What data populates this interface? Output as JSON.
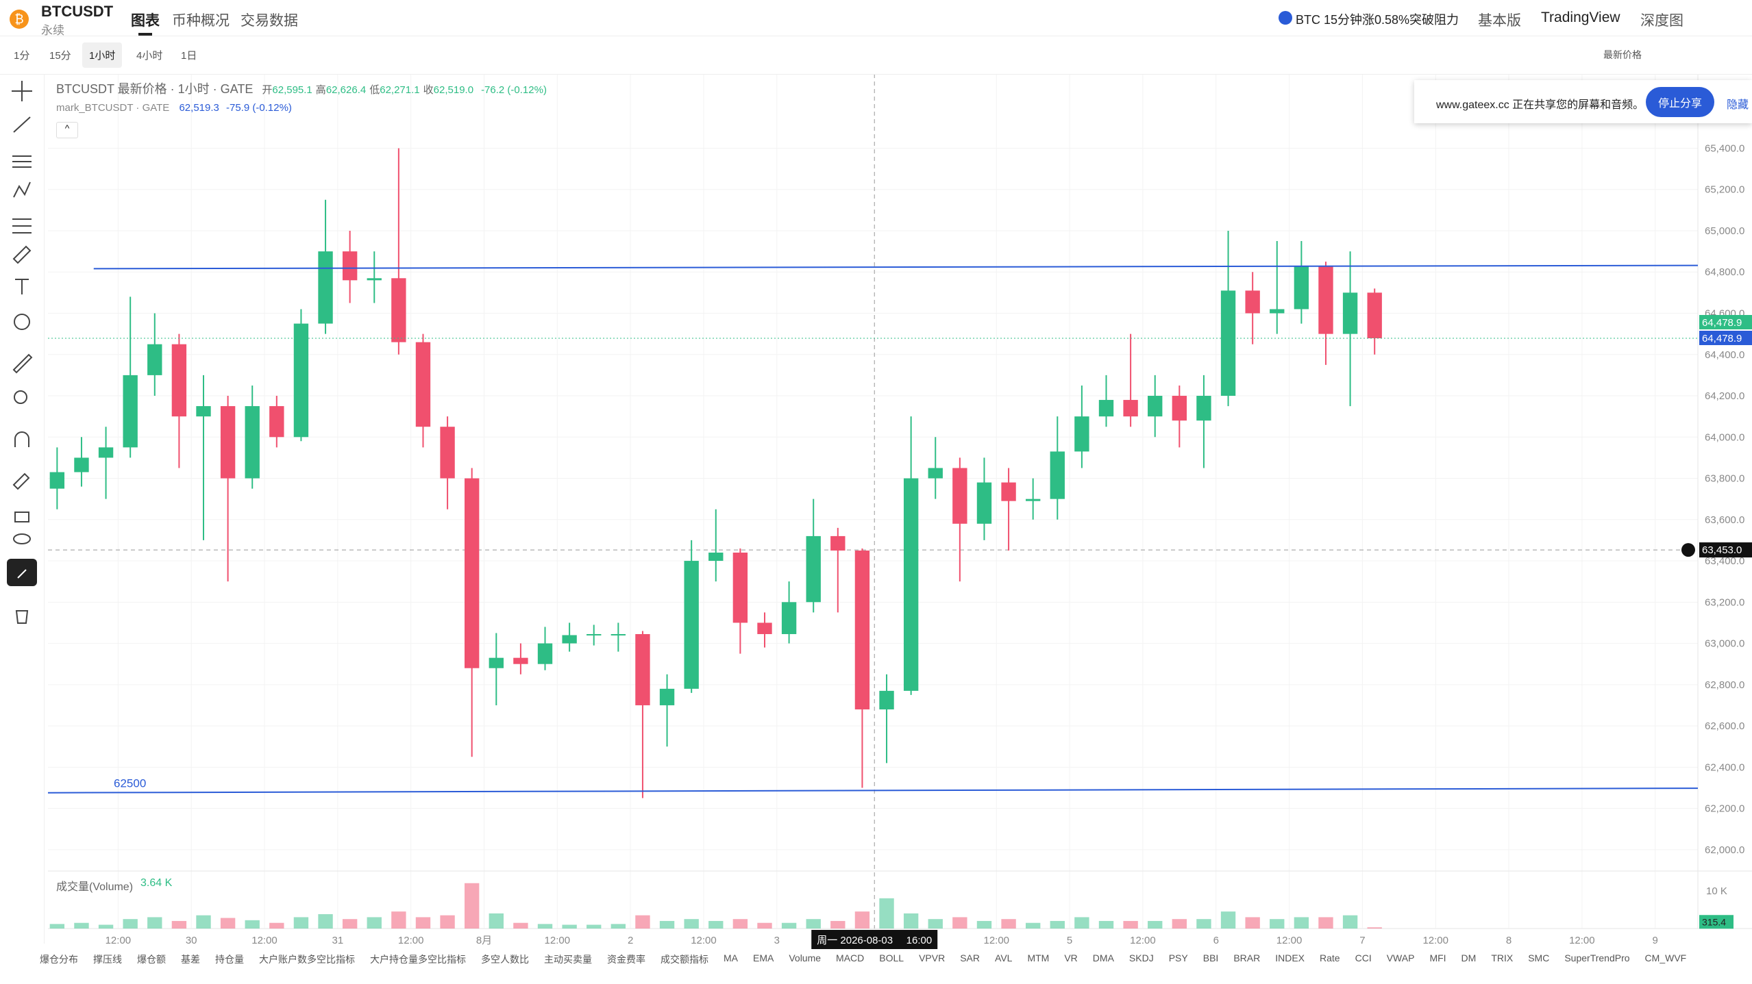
{
  "header": {
    "symbol": "BTCUSDT",
    "contract": "永续",
    "tabs": [
      "图表",
      "币种概况",
      "交易数据"
    ],
    "news": "BTC 15分钟涨0.58%突破阻力",
    "links": [
      "基本版",
      "TradingView",
      "深度图"
    ]
  },
  "toolbar": {
    "intervals": [
      "1分",
      "15分",
      "1小时",
      "4小时",
      "1日"
    ],
    "price_type": "最新价格"
  },
  "legend": {
    "title": "BTCUSDT 最新价格 · 1小时 · GATE",
    "open_label": "开",
    "open": "62,595.1",
    "high_label": "高",
    "high": "62,626.4",
    "low_label": "低",
    "low": "62,271.1",
    "close_label": "收",
    "close": "62,519.0",
    "change": "-76.2 (-0.12%)",
    "mark_title": "mark_BTCUSDT · GATE",
    "mark_value": "62,519.3",
    "mark_change": "-75.9 (-0.12%)"
  },
  "share_banner": {
    "text": "www.gateex.cc 正在共享您的屏幕和音频。",
    "stop": "停止分享",
    "hide": "隐藏"
  },
  "volume_pane": {
    "title": "成交量(Volume)",
    "value": "3.64 K"
  },
  "indicators": [
    "爆仓分布",
    "撑压线",
    "爆仓额",
    "基差",
    "持仓量",
    "大户账户数多空比指标",
    "大户持仓量多空比指标",
    "多空人数比",
    "主动买卖量",
    "资金费率",
    "成交额指标",
    "MA",
    "EMA",
    "Volume",
    "MACD",
    "BOLL",
    "VPVR",
    "SAR",
    "AVL",
    "MTM",
    "VR",
    "DMA",
    "SKDJ",
    "PSY",
    "BBI",
    "BRAR",
    "INDEX",
    "Rate",
    "CCI",
    "VWAP",
    "MFI",
    "DM",
    "TRIX",
    "SMC",
    "SuperTrendPro",
    "CM_WVF"
  ],
  "chart_data": {
    "type": "candlestick",
    "up_color": "#2ebd85",
    "down_color": "#f0506e",
    "grid": true,
    "x": [
      -22,
      -18,
      -14,
      -10,
      -6,
      -2,
      2,
      6,
      10,
      14,
      18,
      22,
      26,
      30,
      34,
      38,
      42,
      46,
      50,
      54,
      58,
      62,
      66,
      70,
      74,
      78,
      82,
      86,
      90,
      94,
      98,
      102,
      106,
      110,
      114,
      118,
      122,
      126,
      130,
      134,
      138,
      142,
      146,
      150,
      154,
      158,
      162,
      166,
      170,
      174,
      178,
      182,
      186,
      190,
      194
    ],
    "open": [
      63750,
      63830,
      63900,
      63950,
      64300,
      64450,
      64100,
      64150,
      63800,
      64150,
      64000,
      64550,
      64900,
      64760,
      64770,
      64460,
      64050,
      63800,
      62880,
      62930,
      62900,
      63000,
      63040,
      63045,
      63045,
      62700,
      62780,
      63400,
      63440,
      63100,
      63045,
      63200,
      63520,
      63450,
      62680,
      62770,
      63800,
      63850,
      63580,
      63780,
      63690,
      63700,
      63930,
      64100,
      64180,
      64100,
      64200,
      64080,
      64200,
      64710,
      64600,
      64620,
      64830,
      64500,
      64700
    ],
    "high": [
      63950,
      64000,
      64050,
      64680,
      64600,
      64500,
      64300,
      64200,
      64250,
      64200,
      64620,
      65150,
      65000,
      64900,
      65400,
      64500,
      64100,
      63850,
      63050,
      63000,
      63080,
      63100,
      63090,
      63100,
      63060,
      62850,
      63500,
      63650,
      63460,
      63150,
      63300,
      63700,
      63560,
      63460,
      62850,
      64100,
      64000,
      63900,
      63900,
      63850,
      63800,
      64100,
      64250,
      64300,
      64500,
      64300,
      64250,
      64300,
      65000,
      64800,
      64950,
      64950,
      64850,
      64900,
      64720
    ],
    "low": [
      63650,
      63760,
      63700,
      63900,
      64200,
      63850,
      63500,
      63300,
      63750,
      63950,
      63980,
      64500,
      64650,
      64650,
      64400,
      63950,
      63650,
      62450,
      62700,
      62850,
      62870,
      62960,
      62990,
      62960,
      62250,
      62500,
      62760,
      63300,
      62950,
      62980,
      63000,
      63150,
      63150,
      62300,
      62420,
      62750,
      63700,
      63300,
      63500,
      63450,
      63600,
      63600,
      63850,
      64050,
      64050,
      64000,
      63950,
      63850,
      64150,
      64450,
      64500,
      64550,
      64350,
      64150,
      64400
    ],
    "close": [
      63830,
      63900,
      63950,
      64300,
      64450,
      64100,
      64150,
      63800,
      64150,
      64000,
      64550,
      64900,
      64760,
      64770,
      64460,
      64050,
      63800,
      62880,
      62930,
      62900,
      63000,
      63040,
      63045,
      63045,
      62700,
      62780,
      63400,
      63440,
      63100,
      63045,
      63200,
      63520,
      63450,
      62680,
      62770,
      63800,
      63850,
      63580,
      63780,
      63690,
      63700,
      63930,
      64100,
      64180,
      64100,
      64200,
      64080,
      64200,
      64710,
      64600,
      64620,
      64830,
      64500,
      64700,
      64478.9
    ],
    "volume": [
      1.2,
      1.5,
      1.0,
      2.5,
      3.0,
      2.0,
      3.5,
      2.8,
      2.2,
      1.5,
      3.0,
      3.8,
      2.5,
      3.0,
      4.5,
      3.0,
      3.5,
      12.0,
      4.0,
      1.5,
      1.2,
      1.0,
      1.0,
      1.2,
      3.5,
      2.0,
      2.5,
      2.0,
      2.5,
      1.5,
      1.5,
      2.5,
      2.0,
      4.5,
      8.0,
      4.0,
      2.5,
      3.0,
      2.0,
      2.5,
      1.5,
      2.0,
      3.0,
      2.0,
      2.0,
      2.0,
      2.5,
      2.5,
      4.5,
      3.0,
      2.5,
      3.0,
      3.0,
      3.5,
      0.3154
    ],
    "xlim": [
      -23.5,
      247
    ],
    "ylim": [
      61900,
      65760
    ],
    "yticks": [
      {
        "value": 62000,
        "label": "62,000.0"
      },
      {
        "value": 62200,
        "label": "62,200.0"
      },
      {
        "value": 62400,
        "label": "62,400.0"
      },
      {
        "value": 62600,
        "label": "62,600.0"
      },
      {
        "value": 62800,
        "label": "62,800.0"
      },
      {
        "value": 63000,
        "label": "63,000.0"
      },
      {
        "value": 63200,
        "label": "63,200.0"
      },
      {
        "value": 63400,
        "label": "63,400.0"
      },
      {
        "value": 63600,
        "label": "63,600.0"
      },
      {
        "value": 63800,
        "label": "63,800.0"
      },
      {
        "value": 64000,
        "label": "64,000.0"
      },
      {
        "value": 64200,
        "label": "64,200.0"
      },
      {
        "value": 64400,
        "label": "64,400.0"
      },
      {
        "value": 64600,
        "label": "64,600.0"
      },
      {
        "value": 64800,
        "label": "64,800.0"
      },
      {
        "value": 65000,
        "label": "65,000.0"
      },
      {
        "value": 65200,
        "label": "65,200.0"
      },
      {
        "value": 65400,
        "label": "65,400.0"
      }
    ],
    "xticks": [
      {
        "value": -12,
        "label": "12:00"
      },
      {
        "value": 0,
        "label": "30"
      },
      {
        "value": 12,
        "label": "12:00"
      },
      {
        "value": 24,
        "label": "31"
      },
      {
        "value": 36,
        "label": "12:00"
      },
      {
        "value": 48,
        "label": "8月"
      },
      {
        "value": 60,
        "label": "12:00"
      },
      {
        "value": 72,
        "label": "2"
      },
      {
        "value": 84,
        "label": "12:00"
      },
      {
        "value": 96,
        "label": "3"
      },
      {
        "value": 132,
        "label": "12:00"
      },
      {
        "value": 144,
        "label": "5"
      },
      {
        "value": 156,
        "label": "12:00"
      },
      {
        "value": 168,
        "label": "6"
      },
      {
        "value": 180,
        "label": "12:00"
      },
      {
        "value": 192,
        "label": "7"
      },
      {
        "value": 204,
        "label": "12:00"
      },
      {
        "value": 216,
        "label": "8"
      },
      {
        "value": 228,
        "label": "12:00"
      },
      {
        "value": 240,
        "label": "9"
      }
    ],
    "volume_ylim": [
      0,
      13.4
    ],
    "volume_yticks": [
      {
        "value": 10,
        "label": "10 K"
      }
    ],
    "volume_last": {
      "value": 0.3154,
      "label": "315.4"
    },
    "last_price": {
      "value": 64478.9,
      "label": "64,478.9",
      "color": "#2ebd85"
    },
    "mark_price": {
      "value": 64478.9,
      "label": "64,478.9",
      "color": "#2a5bd7"
    },
    "crosshair": {
      "x": 112,
      "date": "周一 2026-08-03",
      "time": "16:00",
      "y": {
        "value": 63453,
        "label": "63,453.0"
      }
    },
    "drawings": [
      {
        "x": [
          -16,
          247
        ],
        "y": [
          64816,
          64832
        ],
        "color": "#2a5bd7"
      },
      {
        "x": [
          -23.5,
          247
        ],
        "y": [
          62276,
          62298
        ],
        "color": "#2a5bd7",
        "label": "62500"
      }
    ]
  }
}
